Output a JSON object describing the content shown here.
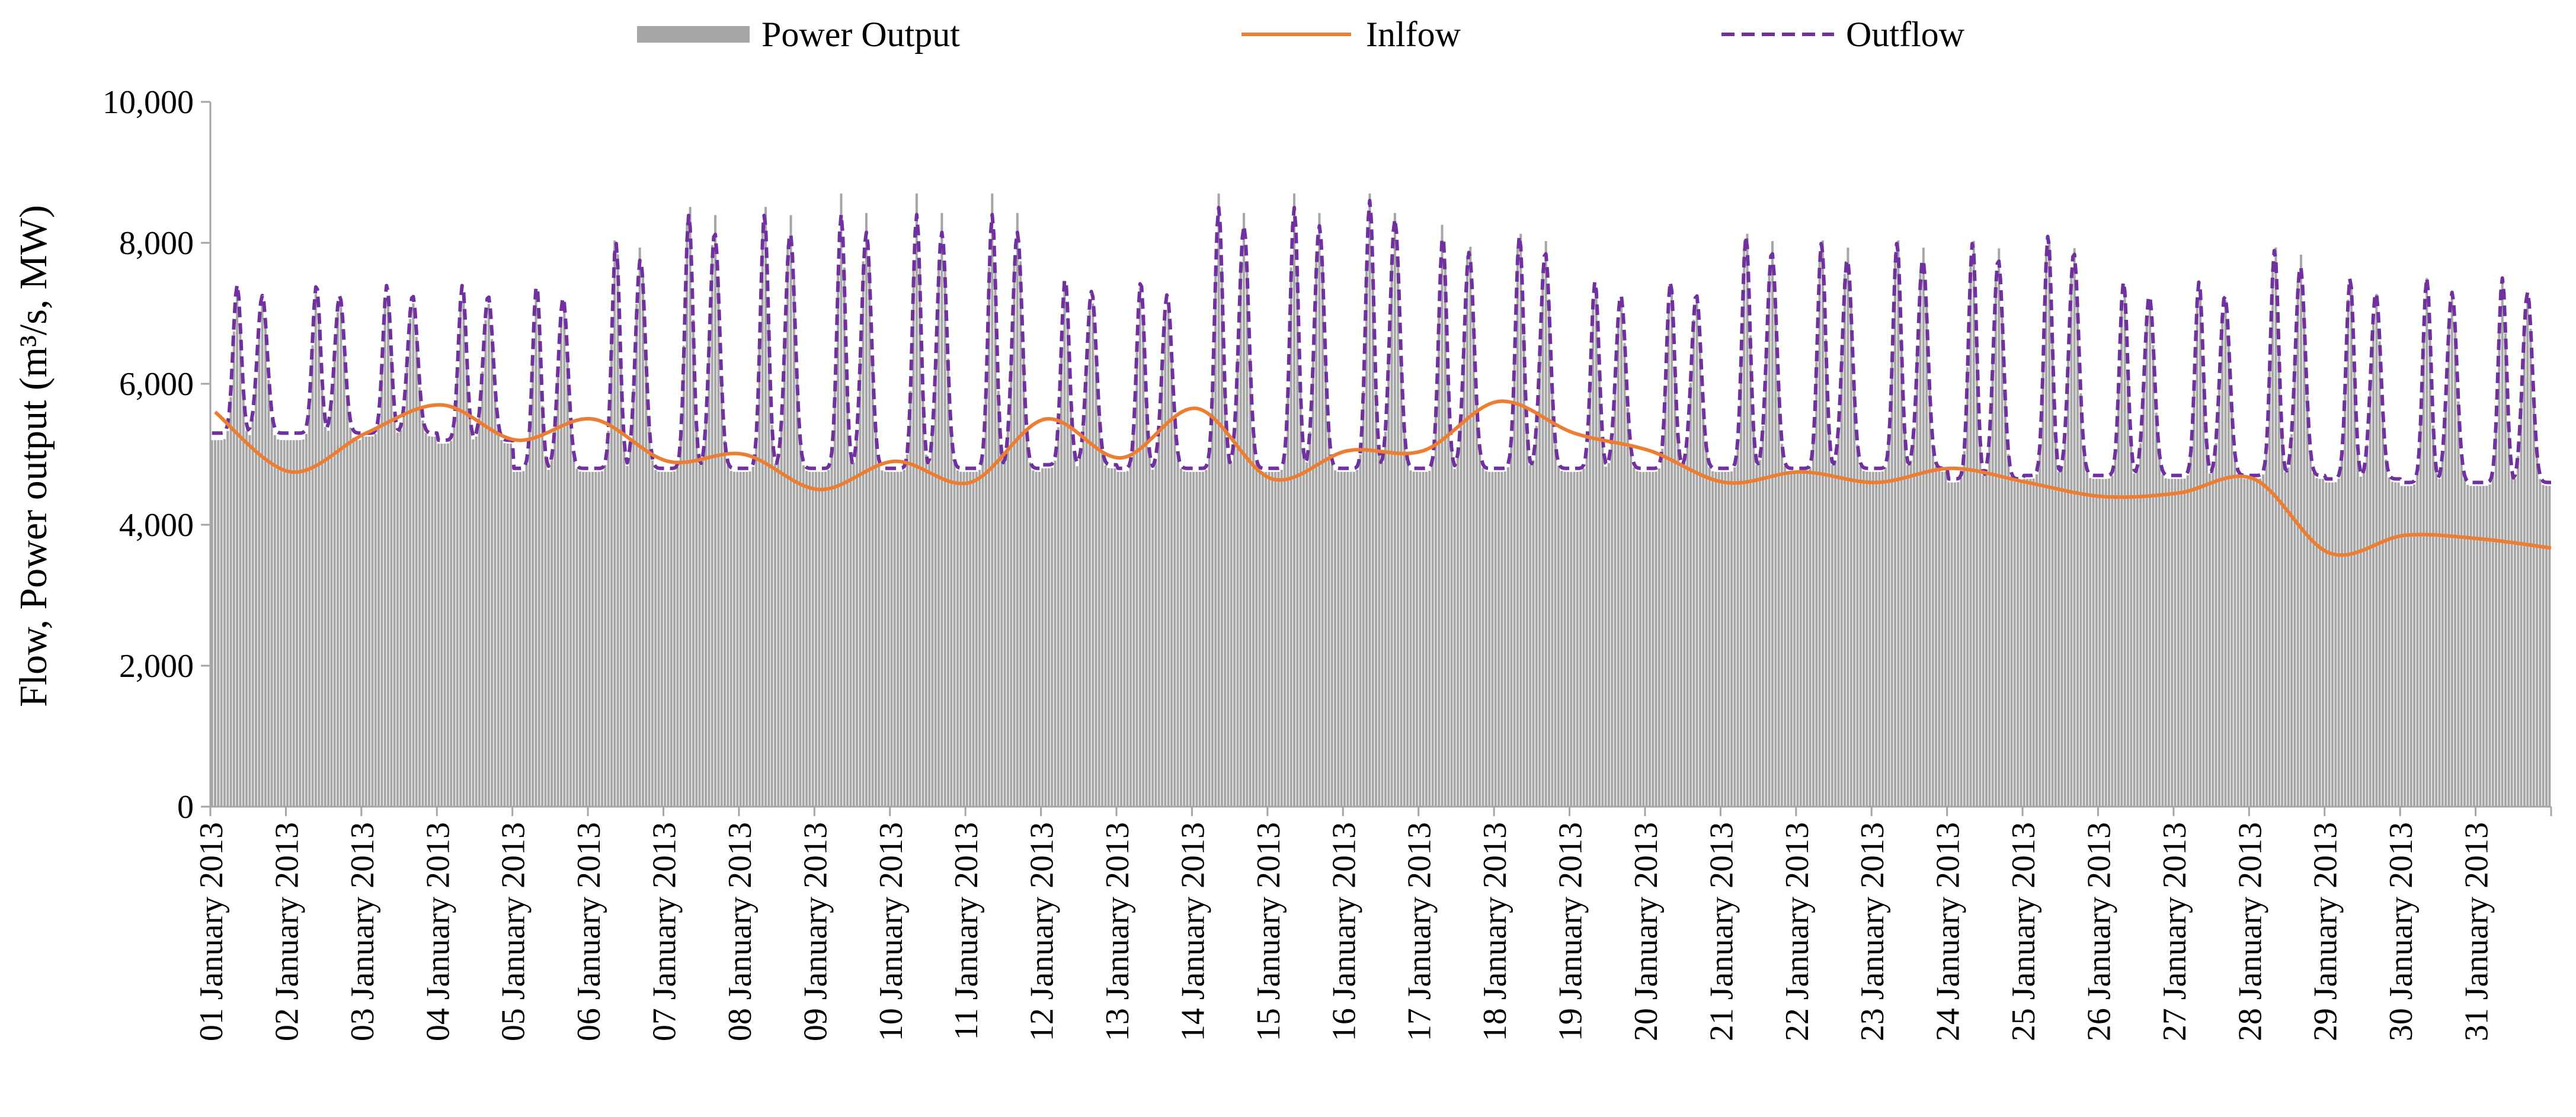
{
  "chart_data": {
    "type": "bar+line",
    "title": "",
    "xlabel": "",
    "ylabel": "Flow, Power output (m³/s, MW)",
    "ylim": [
      0,
      10000
    ],
    "yticks": [
      0,
      2000,
      4000,
      6000,
      8000,
      10000
    ],
    "ytick_labels": [
      "0",
      "2,000",
      "4,000",
      "6,000",
      "8,000",
      "10,000"
    ],
    "categories": [
      "01 January 2013",
      "02 January 2013",
      "03 January 2013",
      "04 January 2013",
      "05 January 2013",
      "06 January 2013",
      "07 January 2013",
      "08 January 2013",
      "09 January 2013",
      "10 January 2013",
      "11 January 2013",
      "12 January 2013",
      "13 January 2013",
      "14 January 2013",
      "15 January 2013",
      "16 January 2013",
      "17 January 2013",
      "18 January 2013",
      "19 January 2013",
      "20 January 2013",
      "21 January 2013",
      "22 January 2013",
      "23 January 2013",
      "24 January 2013",
      "25 January 2013",
      "26 January 2013",
      "27 January 2013",
      "28 January 2013",
      "29 January 2013",
      "30 January 2013",
      "31 January 2013"
    ],
    "hours_per_category": 24,
    "legend_position": "top",
    "series": [
      {
        "name": "Power Output",
        "kind": "bar",
        "color": "#a6a6a6",
        "daily_base": [
          5200,
          5200,
          5250,
          5150,
          4750,
          4750,
          4750,
          4750,
          4750,
          4750,
          4750,
          4800,
          4750,
          4750,
          4750,
          4750,
          4750,
          4750,
          4750,
          4750,
          4750,
          4750,
          4750,
          4600,
          4650,
          4650,
          4650,
          4650,
          4600,
          4550,
          4550
        ],
        "daily_peak": [
          7300,
          7300,
          7300,
          7300,
          7300,
          8200,
          8700,
          8700,
          8700,
          8700,
          8700,
          7400,
          7400,
          8700,
          8700,
          8700,
          8300,
          8300,
          7400,
          7400,
          8300,
          8200,
          8200,
          8200,
          8200,
          7400,
          7400,
          8100,
          7500,
          7500,
          7500
        ],
        "daily_peak_hour": [
          8,
          11,
          7,
          7,
          6,
          9,
          7,
          7,
          8,
          8,
          8,
          6,
          6,
          8,
          8,
          8,
          6,
          7,
          7,
          7,
          7,
          7,
          7,
          7,
          7,
          7,
          7,
          7,
          7,
          8,
          8
        ]
      },
      {
        "name": "Inlfow",
        "kind": "line",
        "color": "#ed7d31",
        "daily_values": [
          5600,
          4750,
          5300,
          5700,
          5200,
          5500,
          4900,
          5000,
          4500,
          4900,
          4600,
          5500,
          4950,
          5650,
          4650,
          5050,
          5050,
          5750,
          5300,
          5050,
          4600,
          4750,
          4600,
          4800,
          4600,
          4400,
          4450,
          4650,
          3600,
          3850,
          3800
        ]
      },
      {
        "name": "Outflow",
        "kind": "dashed-line",
        "color": "#7030a0",
        "daily_base": [
          5300,
          5300,
          5300,
          5200,
          4800,
          4800,
          4800,
          4800,
          4800,
          4800,
          4800,
          4850,
          4800,
          4800,
          4800,
          4800,
          4800,
          4800,
          4800,
          4800,
          4800,
          4800,
          4800,
          4650,
          4700,
          4700,
          4700,
          4700,
          4650,
          4600,
          4600
        ],
        "daily_peak": [
          7400,
          7400,
          7400,
          7400,
          7400,
          8000,
          8400,
          8400,
          8400,
          8400,
          8400,
          7500,
          7450,
          8500,
          8500,
          8600,
          8100,
          8100,
          7450,
          7450,
          8100,
          8000,
          8000,
          8000,
          8100,
          7450,
          7450,
          7900,
          7500,
          7500,
          7500
        ]
      }
    ]
  }
}
